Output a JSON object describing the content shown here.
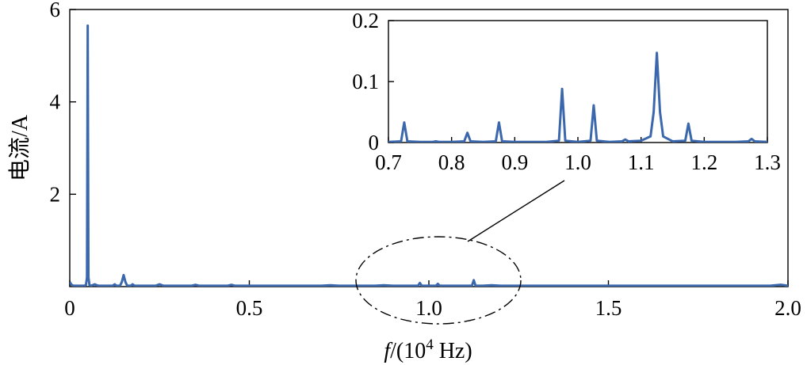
{
  "chart_data": [
    {
      "id": "main",
      "type": "line",
      "xlabel_italic": "f",
      "xlabel_rest": "/(10",
      "xlabel_sup": "4",
      "xlabel_unit": " Hz)",
      "ylabel": "电流/A",
      "xlim": [
        0,
        2.0
      ],
      "ylim": [
        0,
        6
      ],
      "xticks": [
        "0",
        "0.5",
        "1.0",
        "1.5",
        "2.0"
      ],
      "xtick_values": [
        0,
        0.5,
        1.0,
        1.5,
        2.0
      ],
      "yticks": [
        "2",
        "4",
        "6"
      ],
      "ytick_values": [
        2,
        4,
        6
      ],
      "grid": false,
      "line_color": "#3b68ad",
      "series": [
        {
          "x": [
            0,
            0.005,
            0.01,
            0.015,
            0.02,
            0.025,
            0.03,
            0.04,
            0.045,
            0.048,
            0.05,
            0.052,
            0.055,
            0.06,
            0.07,
            0.075,
            0.08,
            0.09,
            0.1,
            0.12,
            0.125,
            0.13,
            0.14,
            0.145,
            0.15,
            0.155,
            0.16,
            0.17,
            0.175,
            0.18,
            0.19,
            0.2,
            0.22,
            0.24,
            0.25,
            0.26,
            0.28,
            0.3,
            0.32,
            0.34,
            0.35,
            0.36,
            0.38,
            0.4,
            0.42,
            0.44,
            0.45,
            0.46,
            0.5,
            0.55,
            0.6,
            0.65,
            0.7,
            0.725,
            0.75,
            0.775,
            0.8,
            0.825,
            0.85,
            0.875,
            0.9,
            0.95,
            0.97,
            0.975,
            0.98,
            1.0,
            1.02,
            1.025,
            1.03,
            1.05,
            1.075,
            1.1,
            1.12,
            1.125,
            1.13,
            1.15,
            1.175,
            1.2,
            1.25,
            1.275,
            1.3,
            1.4,
            1.5,
            1.6,
            1.7,
            1.8,
            1.88,
            1.9,
            1.95,
            1.98,
            2.0
          ],
          "y": [
            0.1,
            0.04,
            0.02,
            0.02,
            0.02,
            0.02,
            0.02,
            0.02,
            0.03,
            0.2,
            5.65,
            0.2,
            0.03,
            0.02,
            0.05,
            0.03,
            0.02,
            0.02,
            0.02,
            0.02,
            0.05,
            0.02,
            0.02,
            0.1,
            0.25,
            0.1,
            0.02,
            0.02,
            0.05,
            0.02,
            0.02,
            0.02,
            0.02,
            0.02,
            0.05,
            0.02,
            0.02,
            0.02,
            0.02,
            0.02,
            0.04,
            0.02,
            0.02,
            0.02,
            0.02,
            0.02,
            0.04,
            0.02,
            0.02,
            0.02,
            0.02,
            0.02,
            0.02,
            0.03,
            0.02,
            0.02,
            0.02,
            0.02,
            0.02,
            0.03,
            0.02,
            0.02,
            0.02,
            0.08,
            0.02,
            0.02,
            0.02,
            0.06,
            0.02,
            0.02,
            0.02,
            0.02,
            0.02,
            0.14,
            0.02,
            0.02,
            0.03,
            0.02,
            0.02,
            0.02,
            0.02,
            0.02,
            0.02,
            0.02,
            0.02,
            0.02,
            0.02,
            0.02,
            0.02,
            0.04,
            0.02
          ]
        }
      ]
    },
    {
      "id": "inset",
      "type": "line",
      "xlim": [
        0.7,
        1.3
      ],
      "ylim": [
        0,
        0.2
      ],
      "xticks": [
        "0.7",
        "0.8",
        "0.9",
        "1.0",
        "1.1",
        "1.2",
        "1.3"
      ],
      "xtick_values": [
        0.7,
        0.8,
        0.9,
        1.0,
        1.1,
        1.2,
        1.3
      ],
      "yticks": [
        "0",
        "0.1",
        "0.2"
      ],
      "ytick_values": [
        0,
        0.1,
        0.2
      ],
      "grid": false,
      "line_color": "#3b68ad",
      "series": [
        {
          "x": [
            0.7,
            0.72,
            0.725,
            0.73,
            0.75,
            0.76,
            0.77,
            0.775,
            0.78,
            0.8,
            0.82,
            0.825,
            0.83,
            0.85,
            0.87,
            0.875,
            0.88,
            0.9,
            0.92,
            0.95,
            0.97,
            0.975,
            0.98,
            1.0,
            1.02,
            1.025,
            1.03,
            1.05,
            1.07,
            1.075,
            1.08,
            1.1,
            1.115,
            1.12,
            1.125,
            1.13,
            1.135,
            1.15,
            1.17,
            1.175,
            1.18,
            1.2,
            1.25,
            1.27,
            1.275,
            1.28,
            1.3
          ],
          "y": [
            0.001,
            0.002,
            0.033,
            0.002,
            0.001,
            0.001,
            0.001,
            0.002,
            0.001,
            0.001,
            0.002,
            0.016,
            0.002,
            0.001,
            0.002,
            0.033,
            0.002,
            0.001,
            0.001,
            0.001,
            0.003,
            0.088,
            0.003,
            0.001,
            0.003,
            0.061,
            0.003,
            0.001,
            0.002,
            0.005,
            0.002,
            0.003,
            0.01,
            0.05,
            0.147,
            0.05,
            0.01,
            0.002,
            0.003,
            0.031,
            0.003,
            0.001,
            0.001,
            0.002,
            0.006,
            0.002,
            0.001
          ]
        }
      ]
    }
  ]
}
